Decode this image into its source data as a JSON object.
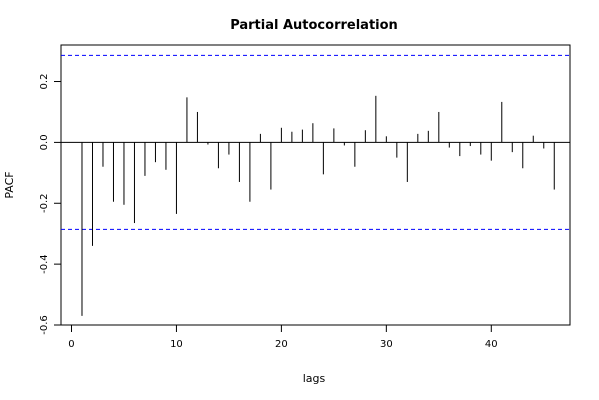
{
  "chart_data": {
    "type": "bar",
    "title": "Partial Autocorrelation",
    "xlabel": "lags",
    "ylabel": "PACF",
    "x_ticks": [
      0,
      10,
      20,
      30,
      40
    ],
    "y_ticks": [
      -0.6,
      -0.4,
      -0.2,
      0.0,
      0.2
    ],
    "y_tick_labels": [
      "-0.6",
      "-0.4",
      "-0.2",
      "0.0",
      "0.2"
    ],
    "xlim": [
      -1,
      47.5
    ],
    "ylim": [
      -0.6,
      0.32
    ],
    "grid": false,
    "confidence_bound": 0.286,
    "confidence_line_color": "#0000ff",
    "bar_color": "#000000",
    "zero_line_color": "#000000",
    "series": [
      {
        "x": [
          1,
          2,
          3,
          4,
          5,
          6,
          7,
          8,
          9,
          10,
          11,
          12,
          13,
          14,
          15,
          16,
          17,
          18,
          19,
          20,
          21,
          22,
          23,
          24,
          25,
          26,
          27,
          28,
          29,
          30,
          31,
          32,
          33,
          34,
          35,
          36,
          37,
          38,
          39,
          40,
          41,
          42,
          43,
          44,
          45,
          46
        ],
        "values": [
          -0.57,
          -0.34,
          -0.08,
          -0.195,
          -0.205,
          -0.265,
          -0.11,
          -0.065,
          -0.09,
          -0.235,
          0.148,
          0.1,
          -0.007,
          -0.085,
          -0.04,
          -0.13,
          -0.195,
          0.028,
          -0.155,
          0.048,
          0.035,
          0.042,
          0.063,
          -0.105,
          0.046,
          -0.01,
          -0.08,
          0.04,
          0.153,
          0.02,
          -0.05,
          -0.13,
          0.028,
          0.038,
          0.1,
          -0.017,
          -0.045,
          -0.012,
          -0.04,
          -0.06,
          0.133,
          -0.032,
          -0.085,
          0.022,
          -0.02,
          -0.155
        ]
      }
    ]
  }
}
